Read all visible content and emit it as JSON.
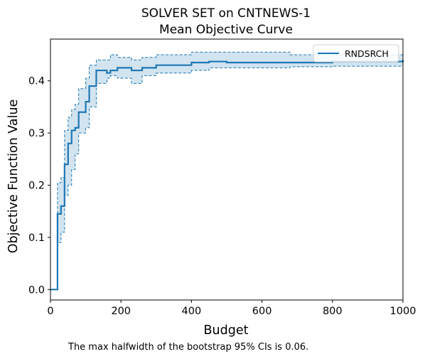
{
  "chart_data": {
    "type": "line",
    "title": "SOLVER SET on CNTNEWS-1",
    "subtitle": "Mean Objective Curve",
    "xlabel": "Budget",
    "ylabel": "Objective Function Value",
    "xlim": [
      0,
      1000
    ],
    "ylim": [
      -0.02,
      0.48
    ],
    "xticks": [
      0,
      200,
      400,
      600,
      800,
      1000
    ],
    "yticks": [
      0.0,
      0.1,
      0.2,
      0.3,
      0.4
    ],
    "xtick_labels": [
      "0",
      "200",
      "400",
      "600",
      "800",
      "1000"
    ],
    "ytick_labels": [
      "0.0",
      "0.1",
      "0.2",
      "0.3",
      "0.4"
    ],
    "grid": false,
    "legend": {
      "position": "top-right",
      "entries": [
        "RNDSRCH"
      ]
    },
    "series": [
      {
        "name": "RNDSRCH",
        "color": "#1f77b4",
        "style": "step",
        "x": [
          0,
          20,
          30,
          40,
          50,
          60,
          70,
          80,
          100,
          110,
          130,
          160,
          170,
          190,
          230,
          260,
          300,
          400,
          450,
          500,
          650,
          680,
          800,
          1000
        ],
        "y": [
          0.0,
          0.145,
          0.16,
          0.24,
          0.28,
          0.305,
          0.31,
          0.34,
          0.36,
          0.39,
          0.42,
          0.415,
          0.42,
          0.425,
          0.42,
          0.425,
          0.43,
          0.435,
          0.437,
          0.435,
          0.435,
          0.435,
          0.437,
          0.44
        ],
        "ci_lower": [
          0.0,
          0.09,
          0.11,
          0.18,
          0.2,
          0.23,
          0.26,
          0.3,
          0.31,
          0.35,
          0.395,
          0.405,
          0.41,
          0.405,
          0.395,
          0.41,
          0.415,
          0.42,
          0.425,
          0.425,
          0.425,
          0.427,
          0.428,
          0.43
        ],
        "ci_upper": [
          0.0,
          0.205,
          0.215,
          0.305,
          0.33,
          0.345,
          0.355,
          0.385,
          0.405,
          0.43,
          0.44,
          0.44,
          0.45,
          0.445,
          0.44,
          0.445,
          0.45,
          0.455,
          0.455,
          0.455,
          0.455,
          0.45,
          0.45,
          0.455
        ]
      }
    ],
    "annotation": "The max halfwidth of the bootstrap 95% CIs is 0.06."
  }
}
